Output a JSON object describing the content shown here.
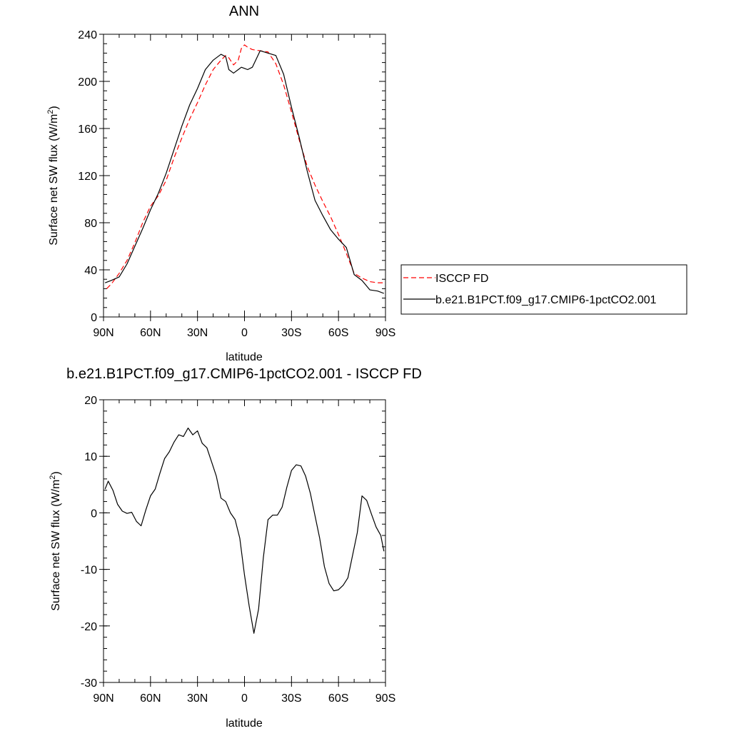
{
  "chart_data": [
    {
      "type": "line",
      "title": "ANN",
      "xlabel": "latitude",
      "ylabel": "Surface net SW flux (W/m",
      "ylabel_sup": "2",
      "ylabel_end": ")",
      "xlim": [
        90,
        -90
      ],
      "ylim": [
        0,
        240
      ],
      "xticks": [
        90,
        60,
        30,
        0,
        -30,
        -60,
        -90
      ],
      "xtick_labels": [
        "90N",
        "60N",
        "30N",
        "0",
        "30S",
        "60S",
        "90S"
      ],
      "yticks": [
        0,
        40,
        80,
        120,
        160,
        200,
        240
      ],
      "ytick_labels": [
        "0",
        "40",
        "80",
        "120",
        "160",
        "200",
        "240"
      ],
      "legend_position": "right",
      "series": [
        {
          "name": "ISCCP FD",
          "color": "#ff0000",
          "dash": "dashed",
          "x": [
            88,
            85,
            80,
            75,
            70,
            65,
            60,
            55,
            50,
            45,
            40,
            35,
            30,
            25,
            20,
            15,
            12,
            10,
            7,
            4,
            2,
            0,
            -2,
            -5,
            -10,
            -15,
            -20,
            -25,
            -30,
            -35,
            -40,
            -45,
            -50,
            -55,
            -60,
            -65,
            -70,
            -75,
            -80,
            -85,
            -89
          ],
          "y": [
            24,
            28,
            37,
            48,
            63,
            80,
            94,
            103,
            116,
            135,
            152,
            168,
            182,
            197,
            210,
            218,
            222,
            220,
            214,
            218,
            228,
            231,
            229,
            227,
            226,
            225,
            215,
            197,
            174,
            150,
            128,
            112,
            98,
            85,
            70,
            54,
            37,
            33,
            30,
            29,
            29
          ]
        },
        {
          "name": "b.e21.B1PCT.f09_g17.CMIP6-1pctCO2.001",
          "color": "#000000",
          "dash": "solid",
          "x": [
            89,
            85,
            80,
            75,
            70,
            65,
            60,
            55,
            50,
            45,
            40,
            35,
            30,
            25,
            20,
            15,
            12,
            10,
            7,
            4,
            2,
            0,
            -2,
            -5,
            -10,
            -15,
            -20,
            -25,
            -30,
            -35,
            -40,
            -45,
            -50,
            -55,
            -60,
            -65,
            -70,
            -75,
            -80,
            -85,
            -89
          ],
          "y": [
            29,
            31,
            34,
            45,
            60,
            75,
            91,
            105,
            122,
            142,
            162,
            180,
            194,
            210,
            218,
            223,
            221,
            210,
            207,
            210,
            212,
            211,
            210,
            212,
            226,
            224,
            222,
            206,
            178,
            152,
            124,
            99,
            86,
            74,
            66,
            59,
            36,
            31,
            23,
            22,
            20
          ]
        }
      ]
    },
    {
      "type": "line",
      "title": "b.e21.B1PCT.f09_g17.CMIP6-1pctCO2.001 - ISCCP FD",
      "xlabel": "latitude",
      "ylabel": "Surface net SW flux (W/m",
      "ylabel_sup": "2",
      "ylabel_end": ")",
      "xlim": [
        90,
        -90
      ],
      "ylim": [
        -30,
        20
      ],
      "xticks": [
        90,
        60,
        30,
        0,
        -30,
        -60,
        -90
      ],
      "xtick_labels": [
        "90N",
        "60N",
        "30N",
        "0",
        "30S",
        "60S",
        "90S"
      ],
      "yticks": [
        -30,
        -20,
        -10,
        0,
        10,
        20
      ],
      "ytick_labels": [
        "-30",
        "-20",
        "-10",
        "0",
        "10",
        "20"
      ],
      "series": [
        {
          "color": "#000000",
          "dash": "solid",
          "x": [
            89,
            87,
            84,
            81,
            78,
            75,
            72,
            69,
            66,
            63,
            60,
            57,
            54,
            51,
            48,
            45,
            42,
            39,
            36,
            33,
            30,
            27,
            24,
            21,
            18,
            15,
            12,
            9,
            6,
            3,
            0,
            -3,
            -6,
            -9,
            -12,
            -15,
            -18,
            -21,
            -24,
            -27,
            -30,
            -33,
            -36,
            -39,
            -42,
            -45,
            -48,
            -51,
            -54,
            -57,
            -60,
            -63,
            -66,
            -69,
            -72,
            -75,
            -78,
            -81,
            -84,
            -87,
            -89
          ],
          "y": [
            4.2,
            5.6,
            4.0,
            1.5,
            0.3,
            -0.1,
            0.1,
            -1.5,
            -2.3,
            0.5,
            3.0,
            4.2,
            7.0,
            9.6,
            10.8,
            12.5,
            13.8,
            13.5,
            15.0,
            13.8,
            14.5,
            12.3,
            11.5,
            9.0,
            6.5,
            2.6,
            2.0,
            0.0,
            -1.2,
            -4.5,
            -11.0,
            -16.5,
            -21.3,
            -17.0,
            -8.0,
            -1.2,
            -0.4,
            -0.4,
            1.0,
            4.5,
            7.5,
            8.5,
            8.3,
            6.5,
            3.5,
            -0.5,
            -4.5,
            -9.5,
            -12.5,
            -13.8,
            -13.6,
            -12.8,
            -11.5,
            -7.5,
            -3.5,
            3.0,
            2.2,
            -0.2,
            -2.5,
            -4.0,
            -6.8
          ]
        }
      ]
    }
  ]
}
